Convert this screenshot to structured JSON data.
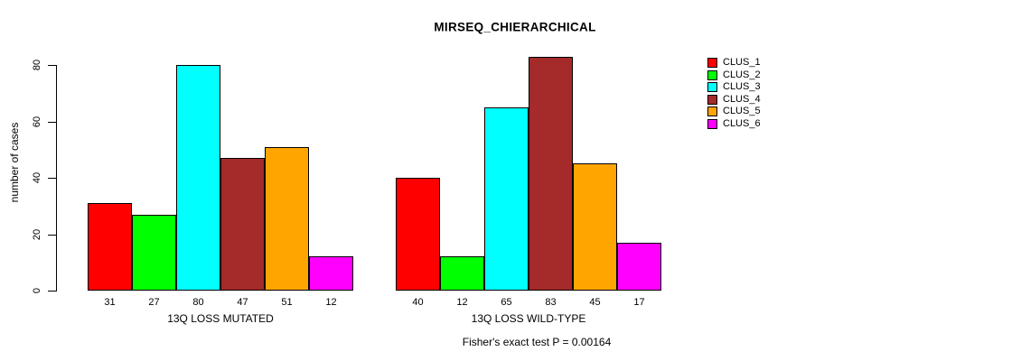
{
  "chart_data": {
    "type": "bar",
    "title": "MIRSEQ_CHIERARCHICAL",
    "ylabel": "number of cases",
    "xlabel": "",
    "ylim": [
      0,
      80
    ],
    "yticks": [
      0,
      20,
      40,
      60,
      80
    ],
    "grid": false,
    "legend_position": "right",
    "bar_value_labels": true,
    "categories": [
      "13Q LOSS MUTATED",
      "13Q LOSS WILD-TYPE"
    ],
    "series": [
      {
        "name": "CLUS_1",
        "color": "#ff0000",
        "values": [
          31,
          40
        ]
      },
      {
        "name": "CLUS_2",
        "color": "#00ff00",
        "values": [
          27,
          12
        ]
      },
      {
        "name": "CLUS_3",
        "color": "#00ffff",
        "values": [
          80,
          65
        ]
      },
      {
        "name": "CLUS_4",
        "color": "#a52a2a",
        "values": [
          47,
          83
        ]
      },
      {
        "name": "CLUS_5",
        "color": "#ffa500",
        "values": [
          51,
          45
        ]
      },
      {
        "name": "CLUS_6",
        "color": "#ff00ff",
        "values": [
          12,
          17
        ]
      }
    ],
    "annotation": "Fisher's exact test P = 0.00164"
  }
}
